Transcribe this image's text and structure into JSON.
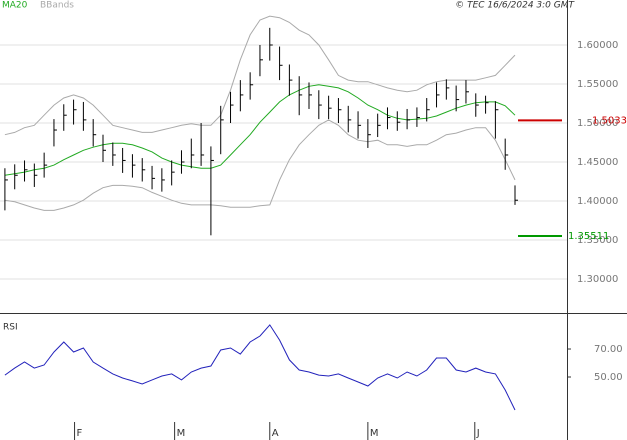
{
  "header": {
    "ma_label": "MA20",
    "bb_label": "BBands",
    "source": "© TEC 16/6/2024 3:0 GMT"
  },
  "chart_data": [
    {
      "type": "ohlc",
      "xlim": [
        -0.5,
        57.3
      ],
      "ylim": [
        1.2564,
        1.6577
      ],
      "yticks": [
        {
          "value": 1.3,
          "label": "1.30000"
        },
        {
          "value": 1.35,
          "label": "1.35000"
        },
        {
          "value": 1.4,
          "label": "1.40000"
        },
        {
          "value": 1.45,
          "label": "1.45000"
        },
        {
          "value": 1.5,
          "label": "1.50000"
        },
        {
          "value": 1.55,
          "label": "1.55000"
        },
        {
          "value": 1.6,
          "label": "1.60000"
        }
      ],
      "grid": true,
      "bar_color": "#000000",
      "high": [
        1.442,
        1.447,
        1.452,
        1.448,
        1.462,
        1.505,
        1.524,
        1.53,
        1.527,
        1.505,
        1.485,
        1.475,
        1.468,
        1.46,
        1.455,
        1.445,
        1.442,
        1.452,
        1.465,
        1.48,
        1.5,
        1.47,
        1.522,
        1.54,
        1.555,
        1.565,
        1.6,
        1.622,
        1.598,
        1.575,
        1.56,
        1.552,
        1.542,
        1.535,
        1.532,
        1.522,
        1.515,
        1.505,
        1.512,
        1.52,
        1.515,
        1.518,
        1.52,
        1.532,
        1.552,
        1.556,
        1.548,
        1.555,
        1.538,
        1.535,
        1.528,
        1.48,
        1.42
      ],
      "low": [
        1.388,
        1.415,
        1.425,
        1.418,
        1.43,
        1.47,
        1.49,
        1.498,
        1.49,
        1.47,
        1.45,
        1.445,
        1.436,
        1.43,
        1.425,
        1.415,
        1.412,
        1.42,
        1.435,
        1.442,
        1.445,
        1.356,
        1.46,
        1.5,
        1.515,
        1.53,
        1.56,
        1.58,
        1.555,
        1.535,
        1.51,
        1.518,
        1.505,
        1.505,
        1.5,
        1.488,
        1.48,
        1.468,
        1.482,
        1.492,
        1.49,
        1.492,
        1.495,
        1.502,
        1.52,
        1.53,
        1.515,
        1.525,
        1.508,
        1.512,
        1.48,
        1.44,
        1.395
      ],
      "close": [
        1.427,
        1.433,
        1.44,
        1.433,
        1.446,
        1.491,
        1.51,
        1.517,
        1.504,
        1.485,
        1.465,
        1.459,
        1.452,
        1.446,
        1.44,
        1.429,
        1.427,
        1.437,
        1.45,
        1.459,
        1.459,
        1.452,
        1.504,
        1.523,
        1.536,
        1.549,
        1.581,
        1.6,
        1.574,
        1.555,
        1.536,
        1.536,
        1.523,
        1.519,
        1.517,
        1.504,
        1.497,
        1.485,
        1.497,
        1.507,
        1.501,
        1.504,
        1.507,
        1.517,
        1.536,
        1.545,
        1.53,
        1.54,
        1.523,
        1.526,
        1.517,
        1.459,
        1.401
      ],
      "series": [
        {
          "name": "MA20",
          "color": "#22aa22",
          "values": [
            1.433,
            1.435,
            1.437,
            1.44,
            1.442,
            1.446,
            1.453,
            1.459,
            1.465,
            1.469,
            1.472,
            1.474,
            1.474,
            1.472,
            1.468,
            1.463,
            1.455,
            1.45,
            1.446,
            1.444,
            1.442,
            1.442,
            1.446,
            1.459,
            1.472,
            1.485,
            1.501,
            1.514,
            1.527,
            1.536,
            1.542,
            1.547,
            1.549,
            1.547,
            1.545,
            1.54,
            1.532,
            1.523,
            1.517,
            1.51,
            1.506,
            1.504,
            1.505,
            1.506,
            1.509,
            1.514,
            1.519,
            1.523,
            1.526,
            1.527,
            1.527,
            1.522,
            1.51
          ]
        },
        {
          "name": "BBands",
          "color": "#aaaaaa",
          "values": [
            1.485,
            1.488,
            1.494,
            1.497,
            1.51,
            1.523,
            1.532,
            1.536,
            1.532,
            1.523,
            1.51,
            1.497,
            1.494,
            1.491,
            1.488,
            1.488,
            1.491,
            1.494,
            1.497,
            1.499,
            1.497,
            1.497,
            1.51,
            1.542,
            1.581,
            1.613,
            1.632,
            1.637,
            1.635,
            1.629,
            1.619,
            1.613,
            1.6,
            1.581,
            1.561,
            1.555,
            1.553,
            1.553,
            1.549,
            1.545,
            1.542,
            1.54,
            1.542,
            1.549,
            1.553,
            1.555,
            1.555,
            1.555,
            1.555,
            1.558,
            1.561,
            1.574,
            1.587
          ]
        },
        {
          "name": "BBands",
          "color": "#aaaaaa",
          "values": [
            1.401,
            1.399,
            1.395,
            1.391,
            1.388,
            1.388,
            1.391,
            1.395,
            1.401,
            1.41,
            1.417,
            1.42,
            1.42,
            1.419,
            1.417,
            1.411,
            1.406,
            1.401,
            1.397,
            1.395,
            1.395,
            1.395,
            1.394,
            1.392,
            1.392,
            1.392,
            1.394,
            1.395,
            1.427,
            1.453,
            1.472,
            1.485,
            1.497,
            1.504,
            1.497,
            1.485,
            1.478,
            1.476,
            1.478,
            1.472,
            1.472,
            1.47,
            1.472,
            1.472,
            1.478,
            1.485,
            1.487,
            1.491,
            1.494,
            1.494,
            1.478,
            1.453,
            1.427
          ]
        }
      ],
      "levels": [
        {
          "value": 1.50333,
          "label": "1.5033",
          "color": "#cc0000"
        },
        {
          "value": 1.35511,
          "label": "1.35511",
          "color": "#009900"
        }
      ]
    },
    {
      "type": "line",
      "title": "RSI",
      "xlim": [
        -0.5,
        57.3
      ],
      "ylim": [
        5,
        94.3
      ],
      "yticks": [
        {
          "value": 50,
          "label": "50.00"
        },
        {
          "value": 70,
          "label": "70.00"
        }
      ],
      "xticks": [
        {
          "value": 7.1,
          "label": "F"
        },
        {
          "value": 17.3,
          "label": "M"
        },
        {
          "value": 27,
          "label": "A"
        },
        {
          "value": 37,
          "label": "M"
        },
        {
          "value": 47.9,
          "label": "J"
        }
      ],
      "series": [
        {
          "name": "RSI",
          "color": "#2222bb",
          "values": [
            51.4,
            56.4,
            60.7,
            56.4,
            58.6,
            67.9,
            75.0,
            67.9,
            70.7,
            60.7,
            56.4,
            52.2,
            49.3,
            47.2,
            45.0,
            47.9,
            50.7,
            52.2,
            47.9,
            53.6,
            56.4,
            57.9,
            69.3,
            70.7,
            66.4,
            75.0,
            79.3,
            87.2,
            76.4,
            62.2,
            55.0,
            53.6,
            51.4,
            50.7,
            52.2,
            49.3,
            46.4,
            43.6,
            49.3,
            52.2,
            49.3,
            53.6,
            50.7,
            55.0,
            63.6,
            63.6,
            55.0,
            53.6,
            56.4,
            53.6,
            52.2,
            40.7,
            26.4
          ]
        }
      ]
    }
  ]
}
